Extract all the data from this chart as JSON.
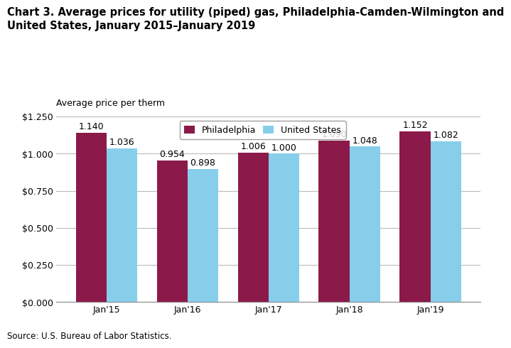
{
  "title_line1": "Chart 3. Average prices for utility (piped) gas, Philadelphia-Camden-Wilmington and",
  "title_line2": "United States, January 2015–January 2019",
  "ylabel": "Average price per therm",
  "source": "Source: U.S. Bureau of Labor Statistics.",
  "categories": [
    "Jan'15",
    "Jan'16",
    "Jan'17",
    "Jan'18",
    "Jan'19"
  ],
  "philadelphia": [
    1.14,
    0.954,
    1.006,
    1.09,
    1.152
  ],
  "us": [
    1.036,
    0.898,
    1.0,
    1.048,
    1.082
  ],
  "philly_color": "#8B1A4A",
  "us_color": "#87CEEB",
  "philly_label": "Philadelphia",
  "us_label": "United States",
  "ylim": [
    0,
    1.25
  ],
  "yticks": [
    0.0,
    0.25,
    0.5,
    0.75,
    1.0,
    1.25
  ],
  "bar_width": 0.38,
  "background_color": "#ffffff",
  "grid_color": "#bbbbbb",
  "title_fontsize": 10.5,
  "label_fontsize": 9,
  "tick_fontsize": 9,
  "annotation_fontsize": 9,
  "source_fontsize": 8.5
}
